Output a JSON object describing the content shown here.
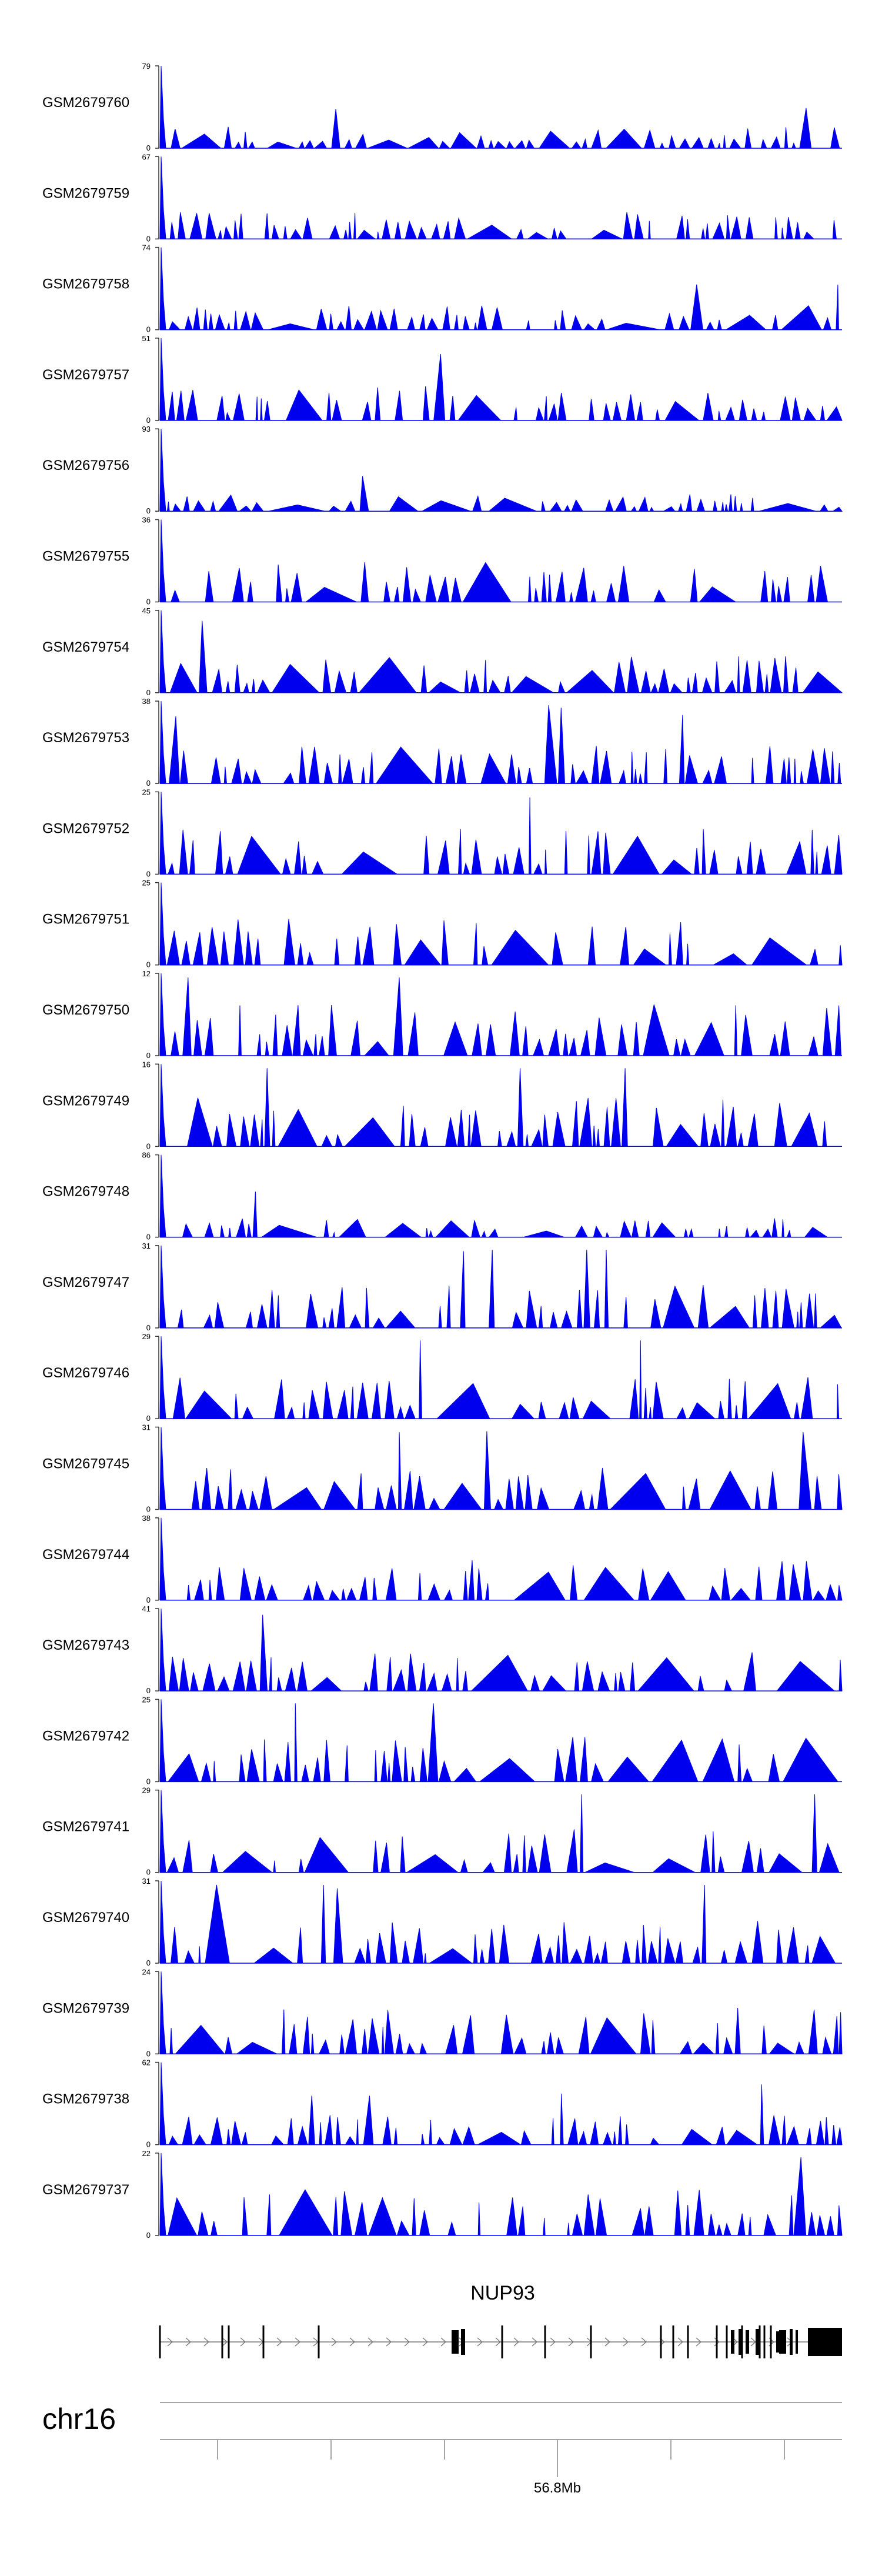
{
  "colors": {
    "signal": "#0000ee",
    "gene": "#000000",
    "axis": "#555555"
  },
  "chart_data": {
    "type": "area",
    "title": "",
    "region": {
      "chromosome": "chr16",
      "tick_label": "56.8Mb"
    },
    "gene": {
      "name": "NUP93"
    },
    "tracks": [
      {
        "name": "GSM2679760",
        "ymax": "79",
        "ymin": "0",
        "peak": 79
      },
      {
        "name": "GSM2679759",
        "ymax": "67",
        "ymin": "0",
        "peak": 67
      },
      {
        "name": "GSM2679758",
        "ymax": "74",
        "ymin": "0",
        "peak": 74
      },
      {
        "name": "GSM2679757",
        "ymax": "51",
        "ymin": "0",
        "peak": 51
      },
      {
        "name": "GSM2679756",
        "ymax": "93",
        "ymin": "0",
        "peak": 93
      },
      {
        "name": "GSM2679755",
        "ymax": "36",
        "ymin": "0",
        "peak": 36
      },
      {
        "name": "GSM2679754",
        "ymax": "45",
        "ymin": "0",
        "peak": 45
      },
      {
        "name": "GSM2679753",
        "ymax": "38",
        "ymin": "0",
        "peak": 38
      },
      {
        "name": "GSM2679752",
        "ymax": "25",
        "ymin": "0",
        "peak": 25
      },
      {
        "name": "GSM2679751",
        "ymax": "25",
        "ymin": "0",
        "peak": 25
      },
      {
        "name": "GSM2679750",
        "ymax": "12",
        "ymin": "0",
        "peak": 12
      },
      {
        "name": "GSM2679749",
        "ymax": "16",
        "ymin": "0",
        "peak": 16
      },
      {
        "name": "GSM2679748",
        "ymax": "86",
        "ymin": "0",
        "peak": 86
      },
      {
        "name": "GSM2679747",
        "ymax": "31",
        "ymin": "0",
        "peak": 31
      },
      {
        "name": "GSM2679746",
        "ymax": "29",
        "ymin": "0",
        "peak": 29
      },
      {
        "name": "GSM2679745",
        "ymax": "31",
        "ymin": "0",
        "peak": 31
      },
      {
        "name": "GSM2679744",
        "ymax": "38",
        "ymin": "0",
        "peak": 38
      },
      {
        "name": "GSM2679743",
        "ymax": "41",
        "ymin": "0",
        "peak": 41
      },
      {
        "name": "GSM2679742",
        "ymax": "25",
        "ymin": "0",
        "peak": 25
      },
      {
        "name": "GSM2679741",
        "ymax": "29",
        "ymin": "0",
        "peak": 29
      },
      {
        "name": "GSM2679740",
        "ymax": "31",
        "ymin": "0",
        "peak": 31
      },
      {
        "name": "GSM2679739",
        "ymax": "24",
        "ymin": "0",
        "peak": 24
      },
      {
        "name": "GSM2679738",
        "ymax": "62",
        "ymin": "0",
        "peak": 62
      },
      {
        "name": "GSM2679737",
        "ymax": "22",
        "ymin": "0",
        "peak": 22
      }
    ]
  }
}
